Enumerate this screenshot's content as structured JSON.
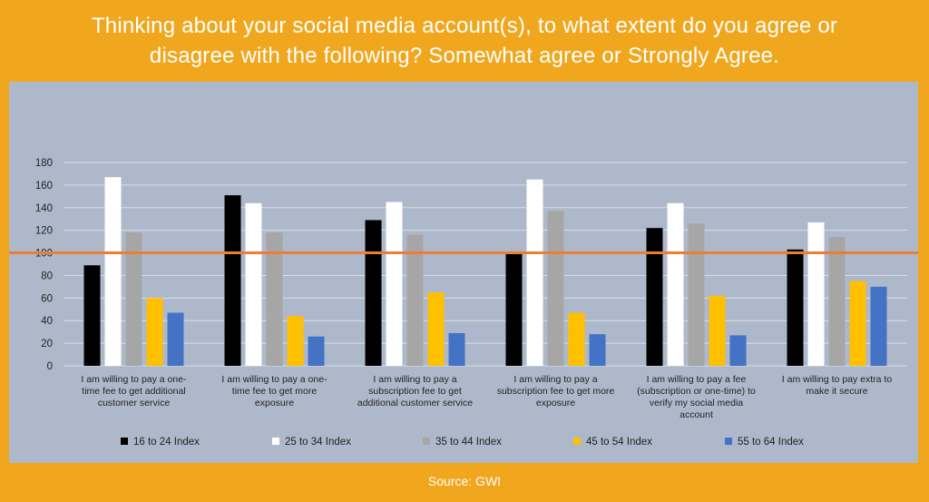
{
  "title_lines": [
    "Thinking about your social media account(s), to what extent do you agree or",
    "disagree with the following? Somewhat agree or Strongly Agree."
  ],
  "source": "Source: GWI",
  "colors": {
    "background": "#F0A71E",
    "plot_area": "#ADB9CA",
    "reference_line": "#ED7D31"
  },
  "chart_data": {
    "type": "bar",
    "categories": [
      "I am willing to pay a one-time fee to get additional customer service",
      "I am willing to pay a one-time fee to get more exposure",
      "I am willing to pay a subscription fee to get additional customer service",
      "I am willing to pay a subscription fee to get more exposure",
      "I am willing to pay a fee (subscription or one-time) to verify my social media account",
      "I am willing to pay extra to make it secure"
    ],
    "category_label_lines": [
      [
        "I am willing to pay a one-",
        "time fee to get additional",
        "customer service"
      ],
      [
        "I am willing to pay a one-",
        "time fee to get more",
        "exposure"
      ],
      [
        "I am willing to pay a",
        "subscription fee to get",
        "additional customer service"
      ],
      [
        "I am willing to pay a",
        "subscription fee to get more",
        "exposure"
      ],
      [
        "I am willing to pay a fee",
        "(subscription or one-time) to",
        "verify my social media",
        "account"
      ],
      [
        "I am willing to pay extra to",
        "make it secure"
      ]
    ],
    "series": [
      {
        "name": "16 to 24 Index",
        "color": "#000000",
        "values": [
          89,
          151,
          129,
          101,
          122,
          103
        ]
      },
      {
        "name": "25 to 34 Index",
        "color": "#FFFFFF",
        "values": [
          167,
          144,
          145,
          165,
          144,
          127
        ]
      },
      {
        "name": "35 to 44 Index",
        "color": "#A6A6A6",
        "values": [
          118,
          118,
          116,
          137,
          126,
          114
        ]
      },
      {
        "name": "45 to 54 Index",
        "color": "#FFC000",
        "values": [
          60,
          44,
          65,
          47,
          62,
          75
        ]
      },
      {
        "name": "55 to 64 Index",
        "color": "#4472C4",
        "values": [
          47,
          26,
          29,
          28,
          27,
          70
        ]
      }
    ],
    "yticks": [
      0,
      20,
      40,
      60,
      80,
      100,
      120,
      140,
      160,
      180
    ],
    "ylim": [
      0,
      180
    ],
    "reference_line": 100,
    "grid": true,
    "legend_position": "bottom"
  }
}
